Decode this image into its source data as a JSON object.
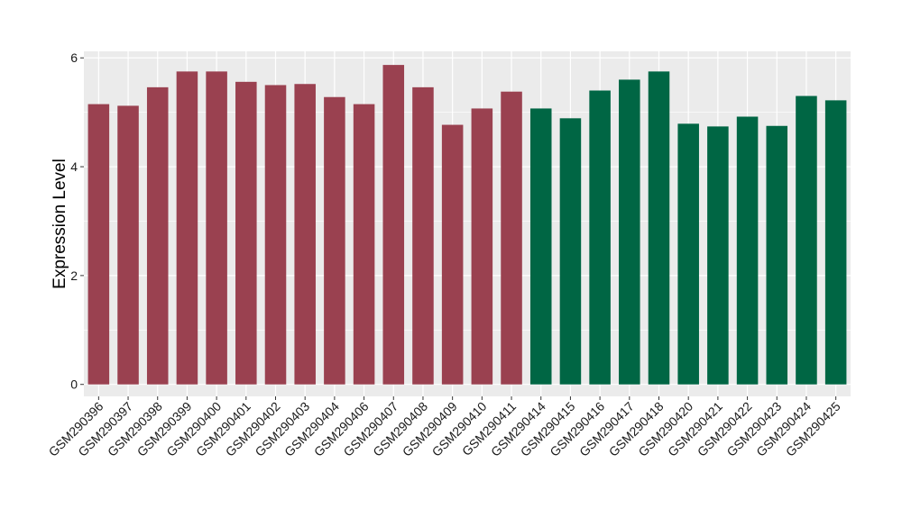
{
  "chart_data": {
    "type": "bar",
    "categories": [
      "GSM290396",
      "GSM290397",
      "GSM290398",
      "GSM290399",
      "GSM290400",
      "GSM290401",
      "GSM290402",
      "GSM290403",
      "GSM290404",
      "GSM290406",
      "GSM290407",
      "GSM290408",
      "GSM290409",
      "GSM290410",
      "GSM290411",
      "GSM290414",
      "GSM290415",
      "GSM290416",
      "GSM290417",
      "GSM290418",
      "GSM290420",
      "GSM290421",
      "GSM290422",
      "GSM290423",
      "GSM290424",
      "GSM290425"
    ],
    "values": [
      5.15,
      5.12,
      5.46,
      5.75,
      5.75,
      5.56,
      5.5,
      5.52,
      5.28,
      5.15,
      5.87,
      5.46,
      4.77,
      5.07,
      5.38,
      5.07,
      4.89,
      5.4,
      5.6,
      5.75,
      4.79,
      4.74,
      4.92,
      4.75,
      5.3,
      5.22
    ],
    "groups": [
      "a",
      "a",
      "a",
      "a",
      "a",
      "a",
      "a",
      "a",
      "a",
      "a",
      "a",
      "a",
      "a",
      "a",
      "a",
      "b",
      "b",
      "b",
      "b",
      "b",
      "b",
      "b",
      "b",
      "b",
      "b",
      "b"
    ],
    "group_colors": {
      "a": "#9A4150",
      "b": "#006644"
    },
    "title": "",
    "xlabel": "",
    "ylabel": "Expression Level",
    "ylim": [
      -0.22,
      6.12
    ],
    "yticks": [
      0,
      2,
      4,
      6
    ],
    "grid": true,
    "legend": "none",
    "panel_background": "#EBEBEB",
    "grid_color": "#FFFFFF"
  }
}
